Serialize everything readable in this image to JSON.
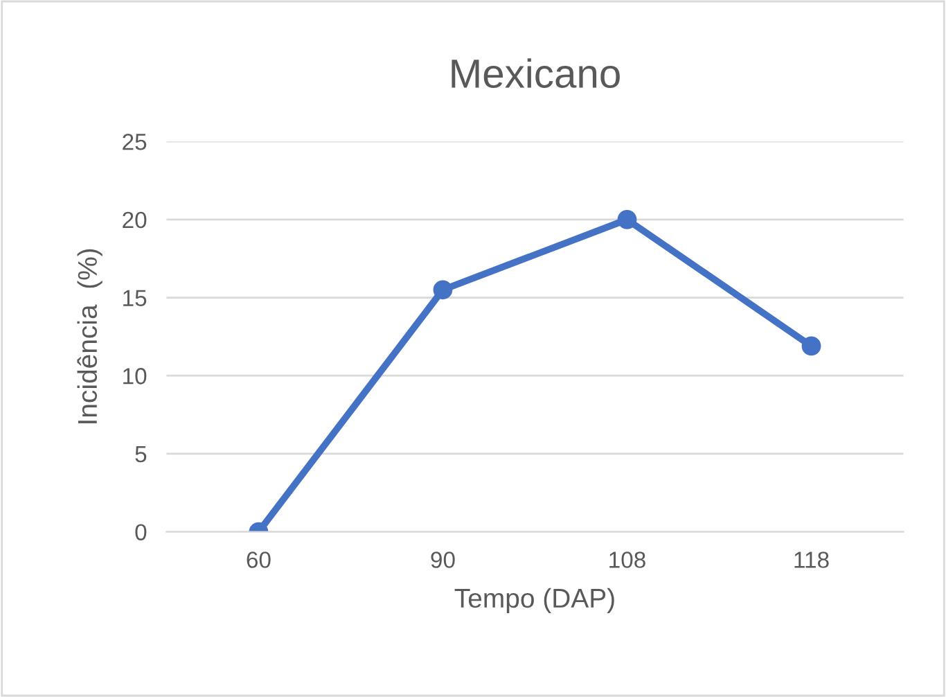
{
  "chart_data": {
    "type": "line",
    "title": "Mexicano",
    "xlabel": "Tempo (DAP)",
    "ylabel": "Incidência  (%)",
    "categories": [
      "60",
      "90",
      "108",
      "118"
    ],
    "series": [
      {
        "color": "#4472c4",
        "values": [
          0,
          15.5,
          20,
          11.9
        ]
      }
    ],
    "ylim": [
      0,
      25
    ],
    "yticks": [
      0,
      5,
      10,
      15,
      20,
      25
    ],
    "grid": "y",
    "marker": "circle",
    "line_style": "solid",
    "legend": false
  }
}
